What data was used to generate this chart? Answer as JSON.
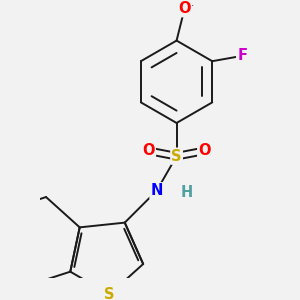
{
  "bg_color": "#f2f2f2",
  "bond_color": "#1a1a1a",
  "bond_width": 1.4,
  "atom_colors": {
    "O": "#ff0000",
    "S_sulfo": "#ccaa00",
    "S_thio": "#ccaa00",
    "N": "#0000ff",
    "F": "#cc00cc",
    "H": "#50a0a0",
    "C": "#1a1a1a"
  },
  "font_size": 10.5
}
